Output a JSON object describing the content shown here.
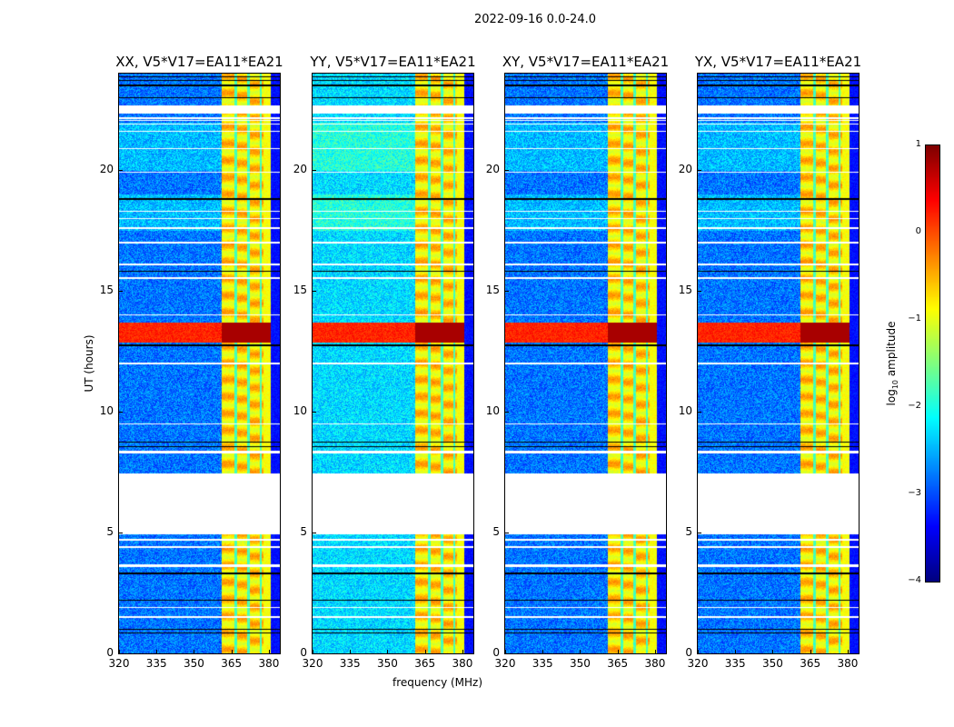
{
  "chart_data": {
    "type": "heatmap",
    "title": "2022-09-16 0.0-24.0",
    "xlabel": "frequency (MHz)",
    "ylabel": "UT (hours)",
    "xlim": [
      320,
      384.4
    ],
    "ylim": [
      0,
      24
    ],
    "xticks": [
      "320",
      "335",
      "350",
      "365",
      "380"
    ],
    "yticks": [
      "0",
      "5",
      "10",
      "15",
      "20"
    ],
    "panels": [
      {
        "title": "XX, V5*V17=EA11*EA21",
        "background_log": -2.8
      },
      {
        "title": "YY, V5*V17=EA11*EA21",
        "background_log": -2.3
      },
      {
        "title": "XY, V5*V17=EA11*EA21",
        "background_log": -2.8
      },
      {
        "title": "YX, V5*V17=EA11*EA21",
        "background_log": -2.8
      }
    ],
    "colorbar": {
      "label": "log10 amplitude",
      "label_main": "log",
      "label_sub": "10",
      "label_rest": " amplitude",
      "range": [
        -4,
        1
      ],
      "ticks": [
        "1",
        "0",
        "−1",
        "−2",
        "−3",
        "−4"
      ],
      "colormap": "jet"
    },
    "rfi_band_mhz": [
      361,
      380.5
    ],
    "strong_event_hours": [
      12.9,
      13.7
    ],
    "flagged_hours": [
      [
        4.95,
        7.45
      ],
      [
        22.35,
        22.7
      ],
      [
        21.6,
        21.65
      ],
      [
        21.9,
        21.95
      ],
      [
        22.05,
        22.1
      ],
      [
        22.15,
        22.2
      ],
      [
        3.6,
        3.7
      ],
      [
        4.4,
        4.45
      ],
      [
        4.7,
        4.75
      ],
      [
        1.5,
        1.55
      ],
      [
        1.9,
        1.95
      ],
      [
        15.5,
        15.6
      ],
      [
        17.0,
        17.05
      ],
      [
        19.9,
        19.95
      ],
      [
        20.9,
        20.95
      ],
      [
        14.0,
        14.05
      ],
      [
        16.1,
        16.15
      ],
      [
        8.3,
        8.4
      ],
      [
        12.0,
        12.05
      ],
      [
        9.5,
        9.55
      ],
      [
        17.6,
        17.65
      ],
      [
        18.0,
        18.05
      ],
      [
        18.3,
        18.35
      ]
    ],
    "zero_hours": [
      [
        23.5,
        23.55
      ],
      [
        23.7,
        23.75
      ],
      [
        23.85,
        23.9
      ],
      [
        23.0,
        23.05
      ],
      [
        0.85,
        0.9
      ],
      [
        1.0,
        1.05
      ],
      [
        8.75,
        8.8
      ],
      [
        8.55,
        8.6
      ],
      [
        12.75,
        12.8
      ],
      [
        18.8,
        18.85
      ],
      [
        15.8,
        15.85
      ],
      [
        3.3,
        3.35
      ],
      [
        2.2,
        2.25
      ]
    ]
  }
}
